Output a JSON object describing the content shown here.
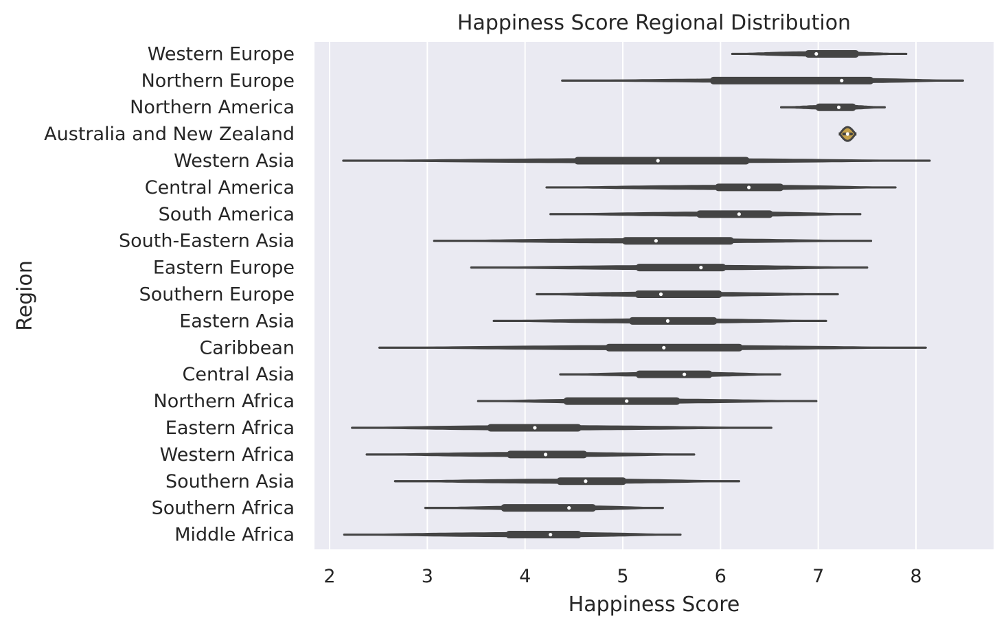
{
  "chart_data": {
    "type": "violin",
    "title": "Happiness Score Regional Distribution",
    "xlabel": "Happiness Score",
    "ylabel": "Region",
    "xlim": [
      1.85,
      8.8
    ],
    "xticks": [
      2,
      3,
      4,
      5,
      6,
      7,
      8
    ],
    "grid": "vertical",
    "colors": {
      "plot_background": "#eaeaf2",
      "grid": "#ffffff",
      "violin_body": "#444444",
      "highlight_fill": "#c4a04a",
      "median_dot": "#ffffff"
    },
    "series": [
      {
        "name": "Western Europe",
        "min": 6.12,
        "q1": 6.9,
        "median": 6.98,
        "q3": 7.38,
        "max": 7.9
      },
      {
        "name": "Northern Europe",
        "min": 4.38,
        "q1": 5.93,
        "median": 7.24,
        "q3": 7.53,
        "max": 8.48
      },
      {
        "name": "Northern America",
        "min": 6.62,
        "q1": 7.01,
        "median": 7.21,
        "q3": 7.35,
        "max": 7.68
      },
      {
        "name": "Australia and New Zealand",
        "min": 7.22,
        "q1": 7.26,
        "median": 7.3,
        "q3": 7.34,
        "max": 7.38
      },
      {
        "name": "Western Asia",
        "min": 2.14,
        "q1": 4.54,
        "median": 5.36,
        "q3": 6.26,
        "max": 8.14
      },
      {
        "name": "Central America",
        "min": 4.22,
        "q1": 5.98,
        "median": 6.29,
        "q3": 6.61,
        "max": 7.79
      },
      {
        "name": "South America",
        "min": 4.26,
        "q1": 5.79,
        "median": 6.19,
        "q3": 6.5,
        "max": 7.43
      },
      {
        "name": "South-Eastern Asia",
        "min": 3.07,
        "q1": 5.03,
        "median": 5.34,
        "q3": 6.1,
        "max": 7.54
      },
      {
        "name": "Eastern Europe",
        "min": 3.45,
        "q1": 5.17,
        "median": 5.8,
        "q3": 6.02,
        "max": 7.5
      },
      {
        "name": "Southern Europe",
        "min": 4.12,
        "q1": 5.16,
        "median": 5.39,
        "q3": 5.98,
        "max": 7.2
      },
      {
        "name": "Eastern Asia",
        "min": 3.68,
        "q1": 5.1,
        "median": 5.46,
        "q3": 5.93,
        "max": 7.08
      },
      {
        "name": "Caribbean",
        "min": 2.51,
        "q1": 4.86,
        "median": 5.42,
        "q3": 6.19,
        "max": 8.1
      },
      {
        "name": "Central Asia",
        "min": 4.36,
        "q1": 5.17,
        "median": 5.63,
        "q3": 5.88,
        "max": 6.61
      },
      {
        "name": "Northern Africa",
        "min": 3.52,
        "q1": 4.43,
        "median": 5.04,
        "q3": 5.55,
        "max": 6.98
      },
      {
        "name": "Eastern Africa",
        "min": 2.23,
        "q1": 3.65,
        "median": 4.1,
        "q3": 4.54,
        "max": 6.52
      },
      {
        "name": "Western Africa",
        "min": 2.38,
        "q1": 3.85,
        "median": 4.21,
        "q3": 4.6,
        "max": 5.73
      },
      {
        "name": "Southern Asia",
        "min": 2.67,
        "q1": 4.36,
        "median": 4.62,
        "q3": 5.0,
        "max": 6.19
      },
      {
        "name": "Southern Africa",
        "min": 2.98,
        "q1": 3.79,
        "median": 4.45,
        "q3": 4.69,
        "max": 5.41
      },
      {
        "name": "Middle Africa",
        "min": 2.15,
        "q1": 3.84,
        "median": 4.26,
        "q3": 4.54,
        "max": 5.59
      }
    ]
  }
}
